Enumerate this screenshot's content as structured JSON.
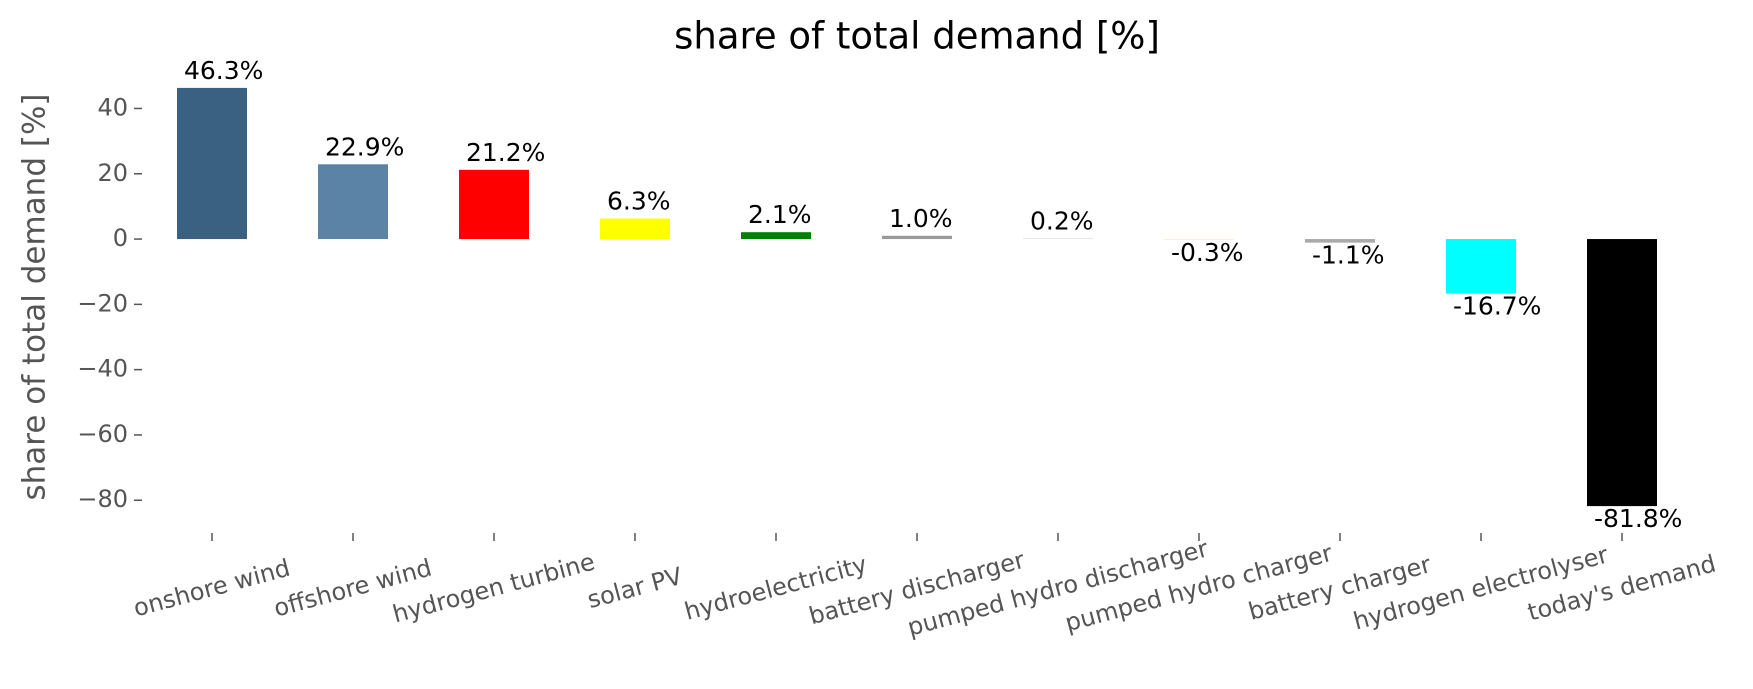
{
  "chart_data": {
    "type": "bar",
    "title": "share of total demand [%]",
    "y_label": "share of total demand [%]",
    "categories": [
      "onshore wind",
      "offshore wind",
      "hydrogen turbine",
      "solar PV",
      "hydroelectricity",
      "battery discharger",
      "pumped hydro discharger",
      "pumped hydro charger",
      "battery charger",
      "hydrogen electrolyser",
      "today's demand"
    ],
    "values": [
      46.3,
      22.9,
      21.2,
      6.3,
      2.1,
      1.0,
      0.2,
      -0.3,
      -1.1,
      -16.7,
      -81.8
    ],
    "value_labels": [
      "46.3%",
      "22.9%",
      "21.2%",
      "6.3%",
      "2.1%",
      "1.0%",
      "0.2%",
      "-0.3%",
      "-1.1%",
      "-16.7%",
      "-81.8%"
    ],
    "colors": [
      "#3b6182",
      "#5b83a5",
      "#ff0000",
      "#ffff00",
      "#008000",
      "#999999",
      "#d9d9d9",
      "#f5f5c8",
      "#aaaaaa",
      "#00ffff",
      "#000000"
    ],
    "ylim": [
      -88.2,
      52.7
    ],
    "yticks": [
      {
        "value": -80,
        "label": "−80"
      },
      {
        "value": -60,
        "label": "−60"
      },
      {
        "value": -40,
        "label": "−40"
      },
      {
        "value": -20,
        "label": "−20"
      },
      0,
      20,
      40
    ],
    "grid": false
  }
}
